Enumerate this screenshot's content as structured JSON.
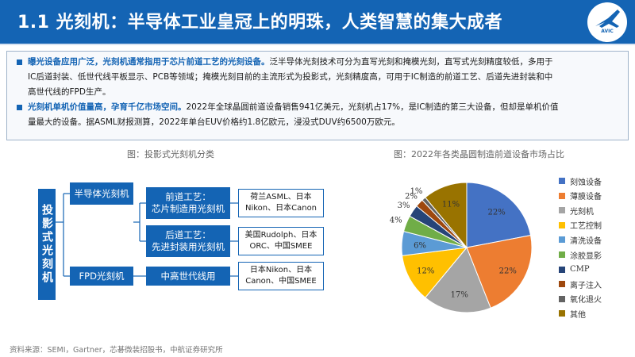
{
  "header": {
    "title": "1.1 光刻机：半导体工业皇冠上的明珠，人类智慧的集大成者",
    "logo_text": "AVIC"
  },
  "summary": [
    {
      "highlight": "曝光设备应用广泛，光刻机通常指用于芯片前道工艺的光刻设备。",
      "lines": [
        "泛半导体光刻技术可分为直写光刻和掩模光刻，直写式光刻精度较低，多用于",
        "IC后道封装、低世代线平板显示、PCB等领域；掩模光刻目前的主流形式为投影式，光刻精度高，可用于IC制造的前道工艺、后道先进封装和中",
        "高世代线的FPD生产。"
      ]
    },
    {
      "highlight": "光刻机单机价值量高，孕育千亿市场空间。",
      "lines": [
        "2022年全球晶圆前道设备销售941亿美元，光刻机占17%，是IC制造的第三大设备，但却是单机价值",
        "量最大的设备。据ASML财报测算，2022年单台EUV价格约1.8亿欧元，浸没式DUV约6500万欧元。"
      ]
    }
  ],
  "diagram": {
    "caption": "图：投影式光刻机分类",
    "root": "投影式光刻机",
    "branches": [
      {
        "label": "半导体光刻机",
        "children": [
          {
            "label": [
              "前道工艺：",
              "芯片制造用光刻机"
            ],
            "vendors": [
              "荷兰ASML、日本",
              "Nikon、日本Canon"
            ]
          },
          {
            "label": [
              "后道工艺：",
              "先进封装用光刻机"
            ],
            "vendors": [
              "美国Rudolph、日本",
              "ORC、中国SMEE"
            ]
          }
        ]
      },
      {
        "label": "FPD光刻机",
        "children": [
          {
            "label": [
              "中高世代线用"
            ],
            "vendors": [
              "日本Nikon、日本",
              "Canon、中国SMEE"
            ]
          }
        ]
      }
    ]
  },
  "chart_data": {
    "type": "pie",
    "title": "图：2022年各类晶圆制造前道设备市场占比",
    "categories": [
      "刻蚀设备",
      "薄膜设备",
      "光刻机",
      "工艺控制",
      "清洗设备",
      "涂胶显影",
      "CMP",
      "离子注入",
      "氧化退火",
      "其他"
    ],
    "values": [
      22,
      22,
      17,
      12,
      6,
      4,
      3,
      2,
      1,
      11
    ],
    "labels": [
      "22%",
      "22%",
      "17%",
      "12%",
      "6%",
      "4%",
      "3%",
      "2%",
      "1%",
      "11%"
    ],
    "colors": [
      "#4472c4",
      "#ed7d31",
      "#a5a5a5",
      "#ffc000",
      "#5b9bd5",
      "#70ad47",
      "#264478",
      "#9e480e",
      "#636363",
      "#997300"
    ],
    "legend_position": "right"
  },
  "source": "资料来源：SEMI，Gartner，芯碁微装招股书，中航证券研究所"
}
